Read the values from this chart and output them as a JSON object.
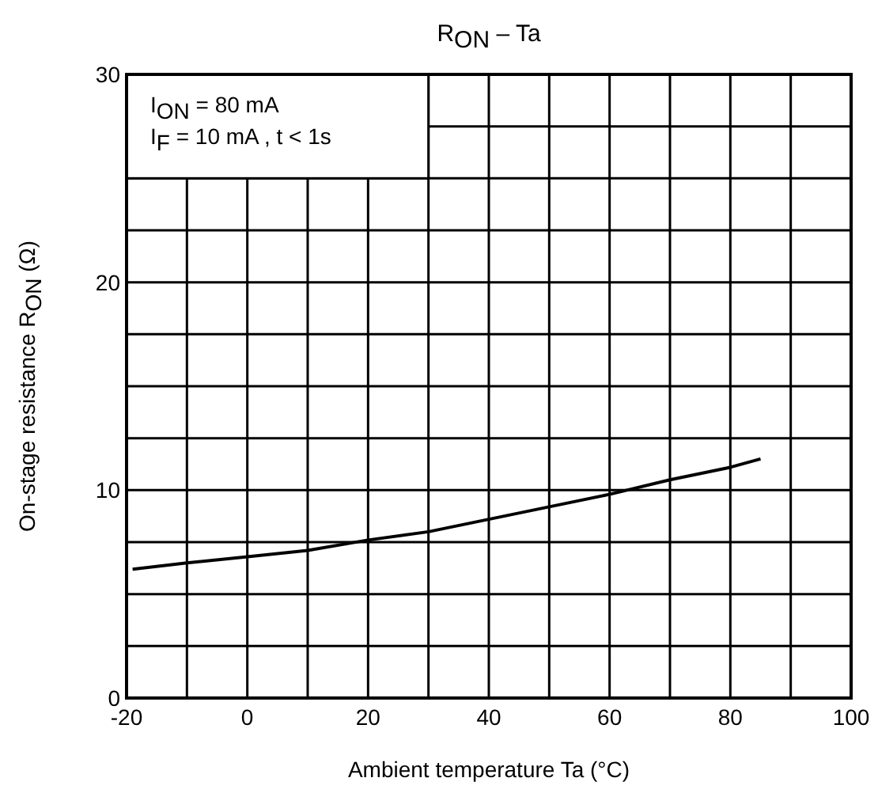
{
  "chart_data": {
    "type": "line",
    "title": "R$_{ON}$ – Ta",
    "xlabel": "Ambient temperature    Ta    (°C)",
    "ylabel": "On-stage resistance     R$_{ON}$ (Ω)",
    "annotations": [
      "I$_{ON}$ = 80 mA",
      "I$_{F}$ = 10 mA , t < 1s"
    ],
    "xlim": [
      -20,
      100
    ],
    "ylim": [
      0,
      30
    ],
    "xticks": [
      -20,
      {
        "value": -10,
        "label": null
      },
      0,
      {
        "value": 10,
        "label": null
      },
      20,
      {
        "value": 30,
        "label": null
      },
      40,
      {
        "value": 50,
        "label": null
      },
      60,
      {
        "value": 70,
        "label": null
      },
      80,
      {
        "value": 90,
        "label": null
      },
      100
    ],
    "yticks": [
      0,
      {
        "value": 2.5,
        "label": null
      },
      {
        "value": 5,
        "label": null
      },
      {
        "value": 7.5,
        "label": null
      },
      10,
      {
        "value": 12.5,
        "label": null
      },
      {
        "value": 15,
        "label": null
      },
      {
        "value": 17.5,
        "label": null
      },
      20,
      {
        "value": 22.5,
        "label": null
      },
      {
        "value": 25,
        "label": null
      },
      {
        "value": 27.5,
        "label": null
      },
      30
    ],
    "grid": true,
    "line_style": "solid",
    "marker": "none",
    "series": [
      {
        "color": "#000000",
        "x": [
          -19,
          -10,
          0,
          10,
          20,
          30,
          40,
          50,
          60,
          70,
          80,
          85
        ],
        "values": [
          6.2,
          6.5,
          6.8,
          7.1,
          7.6,
          8.0,
          8.6,
          9.2,
          9.8,
          10.5,
          11.1,
          11.5
        ]
      }
    ]
  }
}
